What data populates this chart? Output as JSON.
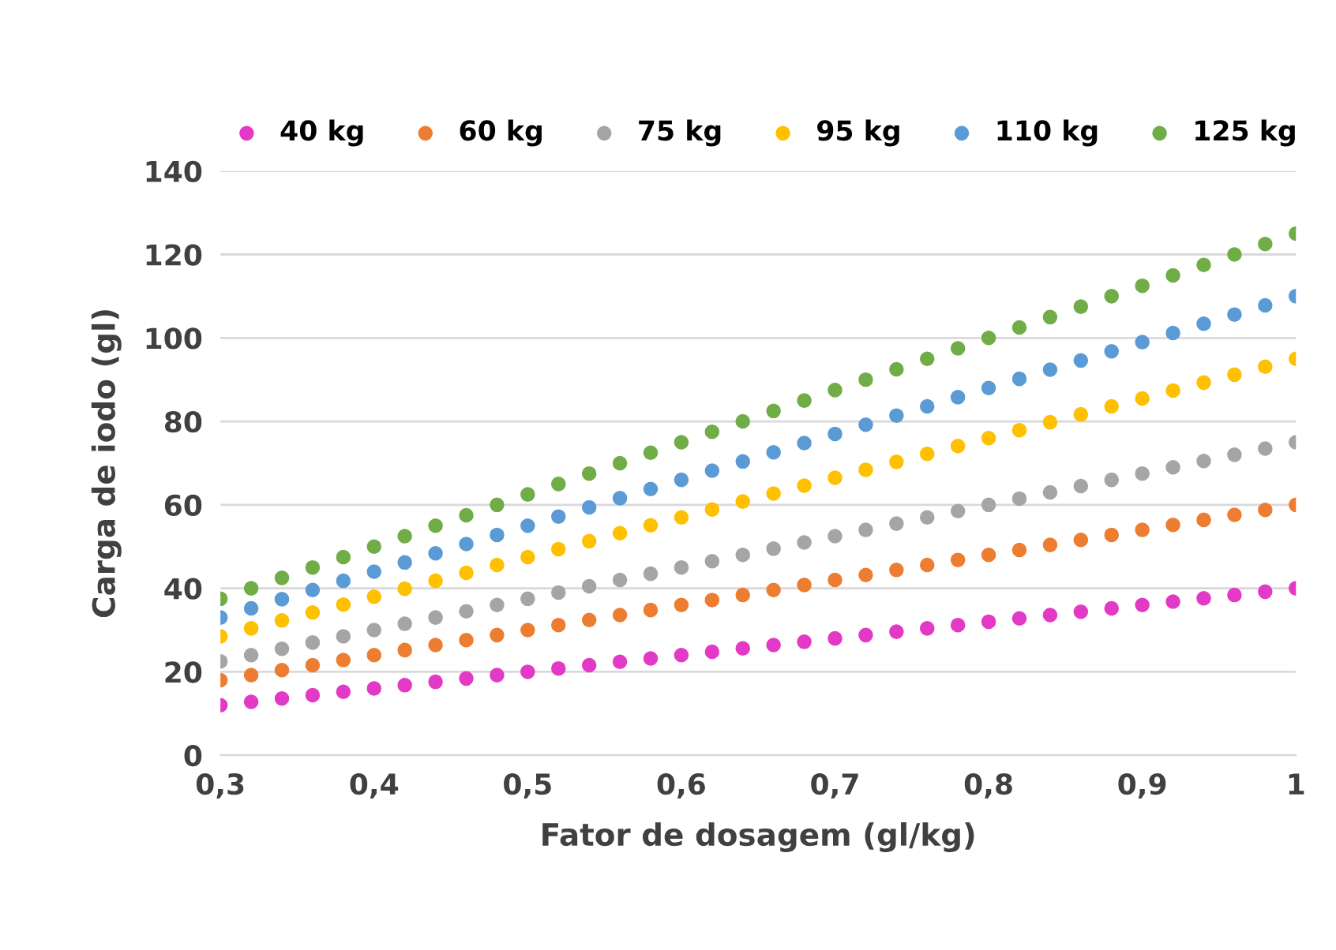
{
  "chart_data": {
    "type": "scatter",
    "xlabel": "Fator de dosagem (gl/kg)",
    "ylabel": "Carga de iodo (gl)",
    "x": [
      0.3,
      0.32,
      0.34,
      0.36,
      0.38,
      0.4,
      0.42,
      0.44,
      0.46,
      0.48,
      0.5,
      0.52,
      0.54,
      0.56,
      0.58,
      0.6,
      0.62,
      0.64,
      0.66,
      0.68,
      0.7,
      0.72,
      0.74,
      0.76,
      0.78,
      0.8,
      0.82,
      0.84,
      0.86,
      0.88,
      0.9,
      0.92,
      0.94,
      0.96,
      0.98,
      1.0
    ],
    "series": [
      {
        "name": "40 kg",
        "color": "#e23ac6",
        "values": [
          12,
          12.8,
          13.6,
          14.4,
          15.2,
          16,
          16.8,
          17.6,
          18.4,
          19.2,
          20,
          20.8,
          21.6,
          22.4,
          23.2,
          24,
          24.8,
          25.6,
          26.4,
          27.2,
          28,
          28.8,
          29.6,
          30.4,
          31.2,
          32,
          32.8,
          33.6,
          34.4,
          35.2,
          36,
          36.8,
          37.6,
          38.4,
          39.2,
          40
        ]
      },
      {
        "name": "60 kg",
        "color": "#ed7d31",
        "values": [
          18,
          19.2,
          20.4,
          21.6,
          22.8,
          24,
          25.2,
          26.4,
          27.6,
          28.8,
          30,
          31.2,
          32.4,
          33.6,
          34.8,
          36,
          37.2,
          38.4,
          39.6,
          40.8,
          42,
          43.2,
          44.4,
          45.6,
          46.8,
          48,
          49.2,
          50.4,
          51.6,
          52.8,
          54,
          55.2,
          56.4,
          57.6,
          58.8,
          60
        ]
      },
      {
        "name": "75 kg",
        "color": "#a5a5a5",
        "values": [
          22.5,
          24,
          25.5,
          27,
          28.5,
          30,
          31.5,
          33,
          34.5,
          36,
          37.5,
          39,
          40.5,
          42,
          43.5,
          45,
          46.5,
          48,
          49.5,
          51,
          52.5,
          54,
          55.5,
          57,
          58.5,
          60,
          61.5,
          63,
          64.5,
          66,
          67.5,
          69,
          70.5,
          72,
          73.5,
          75
        ]
      },
      {
        "name": "95 kg",
        "color": "#ffc000",
        "values": [
          28.5,
          30.4,
          32.3,
          34.2,
          36.1,
          38,
          39.9,
          41.8,
          43.7,
          45.6,
          47.5,
          49.4,
          51.3,
          53.2,
          55.1,
          57,
          58.9,
          60.8,
          62.7,
          64.6,
          66.5,
          68.4,
          70.3,
          72.2,
          74.1,
          76,
          77.9,
          79.8,
          81.7,
          83.6,
          85.5,
          87.4,
          89.3,
          91.2,
          93.1,
          95
        ]
      },
      {
        "name": "110 kg",
        "color": "#5b9bd5",
        "values": [
          33,
          35.2,
          37.4,
          39.6,
          41.8,
          44,
          46.2,
          48.4,
          50.6,
          52.8,
          55,
          57.2,
          59.4,
          61.6,
          63.8,
          66,
          68.2,
          70.4,
          72.6,
          74.8,
          77,
          79.2,
          81.4,
          83.6,
          85.8,
          88,
          90.2,
          92.4,
          94.6,
          96.8,
          99,
          101.2,
          103.4,
          105.6,
          107.8,
          110
        ]
      },
      {
        "name": "125 kg",
        "color": "#70ad47",
        "values": [
          37.5,
          40,
          42.5,
          45,
          47.5,
          50,
          52.5,
          55,
          57.5,
          60,
          62.5,
          65,
          67.5,
          70,
          72.5,
          75,
          77.5,
          80,
          82.5,
          85,
          87.5,
          90,
          92.5,
          95,
          97.5,
          100,
          102.5,
          105,
          107.5,
          110,
          112.5,
          115,
          117.5,
          120,
          122.5,
          125
        ]
      }
    ],
    "xlim": [
      0.3,
      1.0
    ],
    "xticks": [
      {
        "value": 0.3,
        "label": "0,3"
      },
      {
        "value": 0.4,
        "label": "0,4"
      },
      {
        "value": 0.5,
        "label": "0,5"
      },
      {
        "value": 0.6,
        "label": "0,6"
      },
      {
        "value": 0.7,
        "label": "0,7"
      },
      {
        "value": 0.8,
        "label": "0,8"
      },
      {
        "value": 0.9,
        "label": "0,9"
      },
      {
        "value": 1.0,
        "label": "1"
      }
    ],
    "ylim": [
      0,
      140
    ],
    "yticks": [
      0,
      20,
      40,
      60,
      80,
      100,
      120,
      140
    ],
    "grid": "y",
    "legend": "top",
    "marker": "circle"
  }
}
